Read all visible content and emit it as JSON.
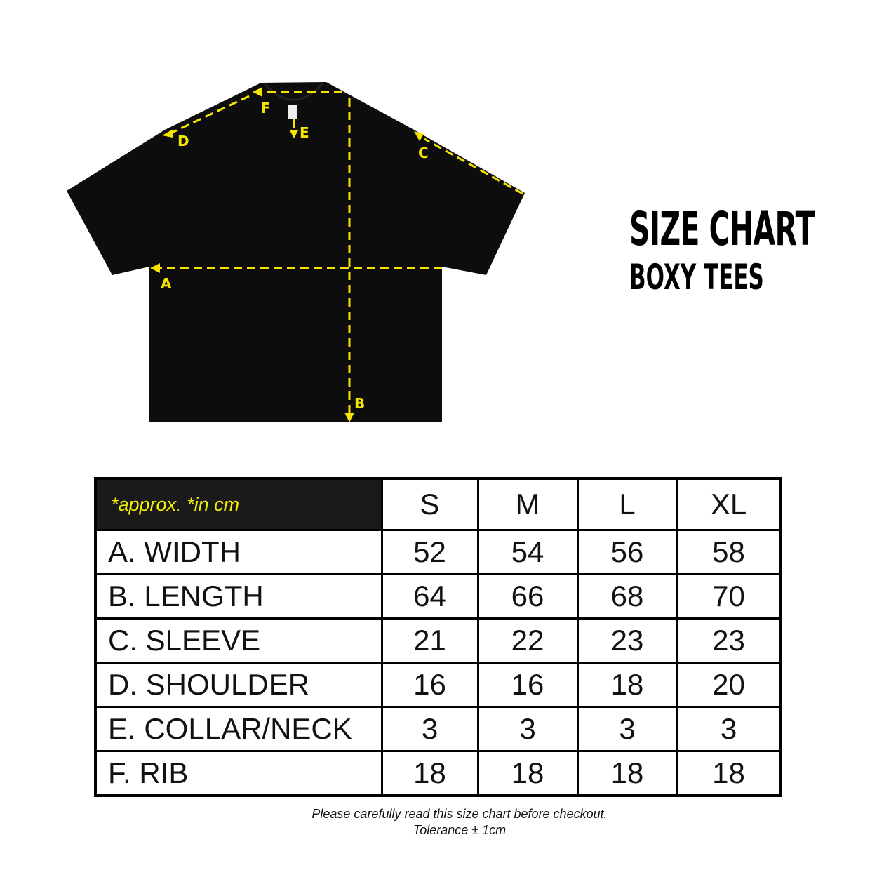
{
  "diagram": {
    "labels": [
      "A",
      "B",
      "C",
      "D",
      "E",
      "F"
    ],
    "accent_color": "#f5e400",
    "garment_color": "#0d0d0d"
  },
  "title": {
    "main": "SIZE CHART",
    "sub": "BOXY TEES"
  },
  "table": {
    "note": "*approx. *in cm",
    "sizes": [
      "S",
      "M",
      "L",
      "XL"
    ],
    "rows": [
      {
        "label": "A. WIDTH",
        "values": [
          "52",
          "54",
          "56",
          "58"
        ]
      },
      {
        "label": "B. LENGTH",
        "values": [
          "64",
          "66",
          "68",
          "70"
        ]
      },
      {
        "label": "C. SLEEVE",
        "values": [
          "21",
          "22",
          "23",
          "23"
        ]
      },
      {
        "label": "D. SHOULDER",
        "values": [
          "16",
          "16",
          "18",
          "20"
        ]
      },
      {
        "label": "E. COLLAR/NECK",
        "values": [
          "3",
          "3",
          "3",
          "3"
        ]
      },
      {
        "label": "F. RIB",
        "values": [
          "18",
          "18",
          "18",
          "18"
        ]
      }
    ]
  },
  "footer": {
    "line1": "Please carefully read this size chart before checkout.",
    "line2": "Tolerance ± 1cm"
  }
}
